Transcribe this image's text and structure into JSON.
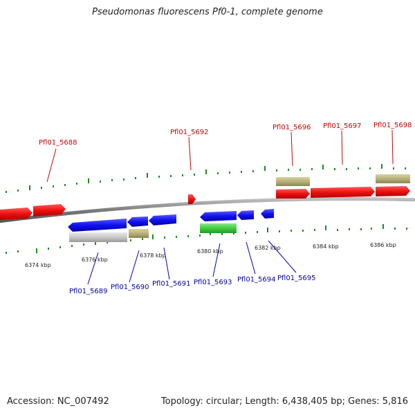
{
  "title": "Pseudomonas fluorescens Pf0-1, complete genome",
  "footer": {
    "accession": "Accession: NC_007492",
    "summary": "Topology: circular; Length: 6,438,405 bp; Genes: 5,816"
  },
  "colors": {
    "forward_gene": "#ee1111",
    "reverse_gene": "#1111ee",
    "rna": "#b8b07a",
    "pseudo": "#c8c8c8",
    "other": "#44cc44",
    "backbone": "#888888",
    "ticks": "#1a8a1a"
  },
  "scale": {
    "ticks": [
      {
        "label": "6374 kbp"
      },
      {
        "label": "6376 kbp"
      },
      {
        "label": "6378 kbp"
      },
      {
        "label": "6380 kbp"
      },
      {
        "label": "6382 kbp"
      },
      {
        "label": "6384 kbp"
      },
      {
        "label": "6386 kbp"
      }
    ]
  },
  "top_labels": [
    {
      "label": "Pfl01_5688"
    },
    {
      "label": "Pfl01_5692"
    },
    {
      "label": "Pfl01_5696"
    },
    {
      "label": "Pfl01_5697"
    },
    {
      "label": "Pfl01_5698"
    }
  ],
  "bottom_labels": [
    {
      "label": "Pfl01_5689"
    },
    {
      "label": "Pfl01_5690"
    },
    {
      "label": "Pfl01_5691"
    },
    {
      "label": "Pfl01_5693"
    },
    {
      "label": "Pfl01_5694"
    },
    {
      "label": "Pfl01_5695"
    }
  ]
}
